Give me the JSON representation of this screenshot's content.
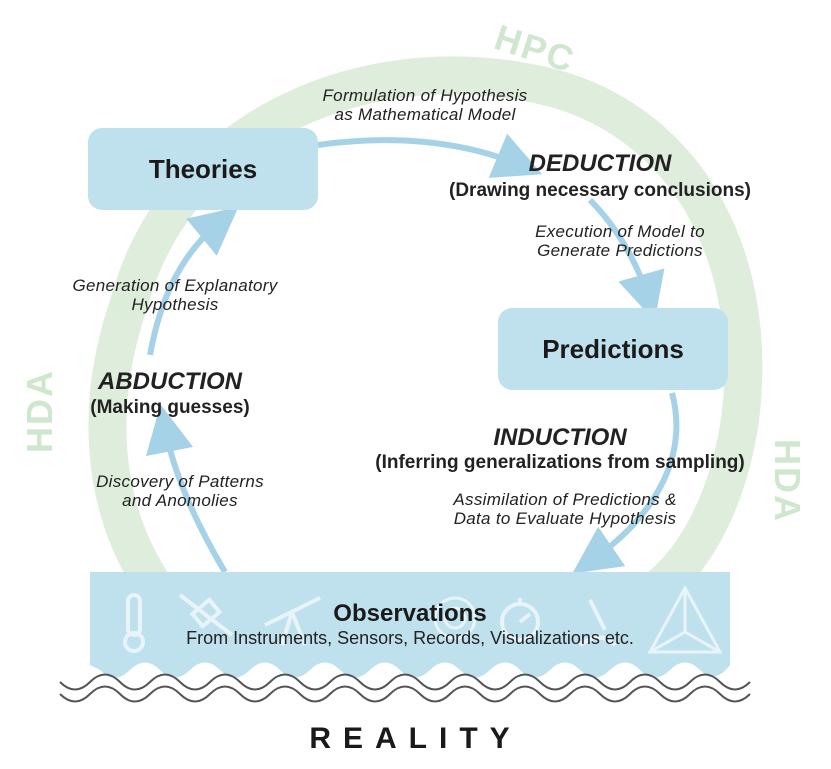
{
  "nodes": {
    "theories": "Theories",
    "predictions": "Predictions",
    "observations": "Observations",
    "observations_sub": "From Instruments, Sensors, Records, Visualizations etc."
  },
  "reasoning": {
    "deduction": "DEDUCTION",
    "deduction_sub": "(Drawing necessary conclusions)",
    "induction": "INDUCTION",
    "induction_sub": "(Inferring generalizations from sampling)",
    "abduction": "ABDUCTION",
    "abduction_sub": "(Making guesses)"
  },
  "edges": {
    "formulation": [
      "Formulation of Hypothesis",
      "as Mathematical Model"
    ],
    "execution": [
      "Execution of Model to",
      "Generate Predictions"
    ],
    "assimilation": [
      "Assimilation of Predictions &",
      "Data to Evaluate Hypothesis"
    ],
    "discovery": [
      "Discovery of Patterns",
      "and Anomolies"
    ],
    "generation": [
      "Generation of Explanatory",
      "Hypothesis"
    ]
  },
  "ring_labels": {
    "top": "HPC",
    "left": "HDA",
    "right": "HDA"
  },
  "footer": "REALITY",
  "colors": {
    "box": "#bfe1ee",
    "arrow": "#a6d2e8",
    "ring": "#dcecd8",
    "ring_text": "#cfe6cf"
  },
  "icons": [
    "thermometer-icon",
    "satellite-icon",
    "telescope-icon",
    "target-icon",
    "stopwatch-icon",
    "microscope-icon",
    "tetrahedron-icon"
  ]
}
